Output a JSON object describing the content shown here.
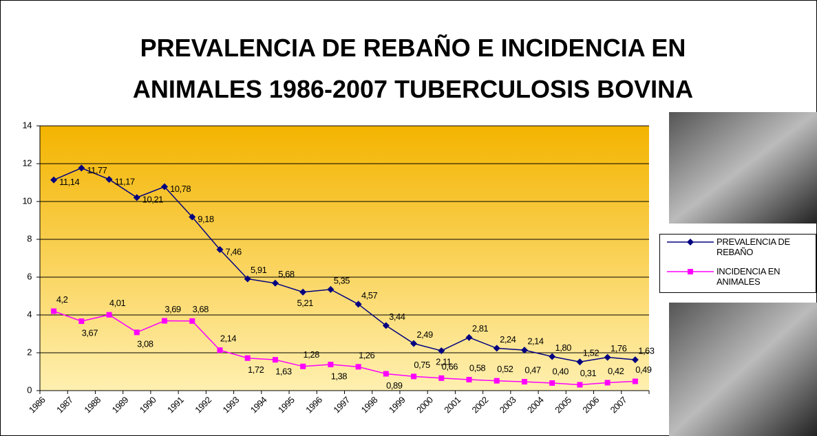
{
  "chart_data": {
    "type": "line",
    "title": "PREVALENCIA DE REBAÑO E INCIDENCIA EN ANIMALES 1986-2007 TUBERCULOSIS BOVINA",
    "categories": [
      "1986",
      "1987",
      "1988",
      "1989",
      "1990",
      "1991",
      "1992",
      "1993",
      "1994",
      "1995",
      "1996",
      "1997",
      "1998",
      "1999",
      "2000",
      "2001",
      "2002",
      "2003",
      "2004",
      "2005",
      "2006",
      "2007"
    ],
    "series": [
      {
        "name": "PREVALENCIA DE REBAÑO",
        "color": "#000080",
        "marker": "diamond",
        "values": [
          11.14,
          11.77,
          11.17,
          10.21,
          10.78,
          9.18,
          7.46,
          5.91,
          5.68,
          5.21,
          5.35,
          4.57,
          3.44,
          2.49,
          2.11,
          2.81,
          2.24,
          2.14,
          1.8,
          1.52,
          1.76,
          1.63
        ],
        "value_labels": [
          "11,14",
          "11,77",
          "11,17",
          "10,21",
          "10,78",
          "9,18",
          "7,46",
          "5,91",
          "5,68",
          "5,21",
          "5,35",
          "4,57",
          "3,44",
          "2,49",
          "2,11",
          "2,81",
          "2,24",
          "2,14",
          "1,80",
          "1,52",
          "1,76",
          "1,63"
        ]
      },
      {
        "name": "INCIDENCIA EN ANIMALES",
        "color": "#ff00ff",
        "marker": "square",
        "values": [
          4.2,
          3.67,
          4.01,
          3.08,
          3.69,
          3.68,
          2.14,
          1.72,
          1.63,
          1.28,
          1.38,
          1.26,
          0.89,
          0.75,
          0.66,
          0.58,
          0.52,
          0.47,
          0.4,
          0.31,
          0.42,
          0.49
        ],
        "value_labels": [
          "4,2",
          "3,67",
          "4,01",
          "3,08",
          "3,69",
          "3,68",
          "2,14",
          "1,72",
          "1,63",
          "1,28",
          "1,38",
          "1,26",
          "0,89",
          "0,75",
          "0,66",
          "0,58",
          "0,52",
          "0,47",
          "0,40",
          "0,31",
          "0,42",
          "0,49"
        ]
      }
    ],
    "ylim": [
      0,
      14
    ],
    "yticks": [
      0,
      2,
      4,
      6,
      8,
      10,
      12,
      14
    ],
    "grid": true,
    "legend": "right"
  }
}
